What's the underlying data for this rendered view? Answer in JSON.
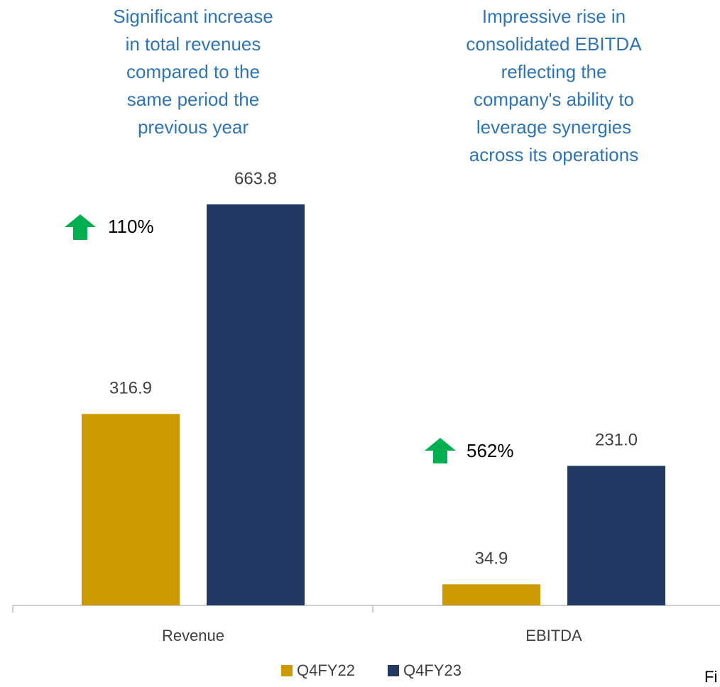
{
  "chart_data": {
    "type": "bar",
    "categories": [
      "Revenue",
      "EBITDA"
    ],
    "series": [
      {
        "name": "Q4FY22",
        "color": "#cc9a00",
        "values": [
          316.9,
          34.9
        ],
        "value_labels": [
          "316.9",
          "34.9"
        ]
      },
      {
        "name": "Q4FY23",
        "color": "#213862",
        "values": [
          663.8,
          231.0
        ],
        "value_labels": [
          "663.8",
          "231.0"
        ]
      }
    ],
    "annotations": [
      {
        "lines": [
          "Significant increase",
          "in total revenues",
          "compared to the",
          "same period the",
          "previous year"
        ]
      },
      {
        "lines": [
          "Impressive rise in",
          "consolidated EBITDA",
          "reflecting the",
          "company's ability to",
          "leverage synergies",
          "across its operations"
        ]
      }
    ],
    "growth_labels": [
      "110%",
      "562%"
    ],
    "footnote": "Fi"
  }
}
